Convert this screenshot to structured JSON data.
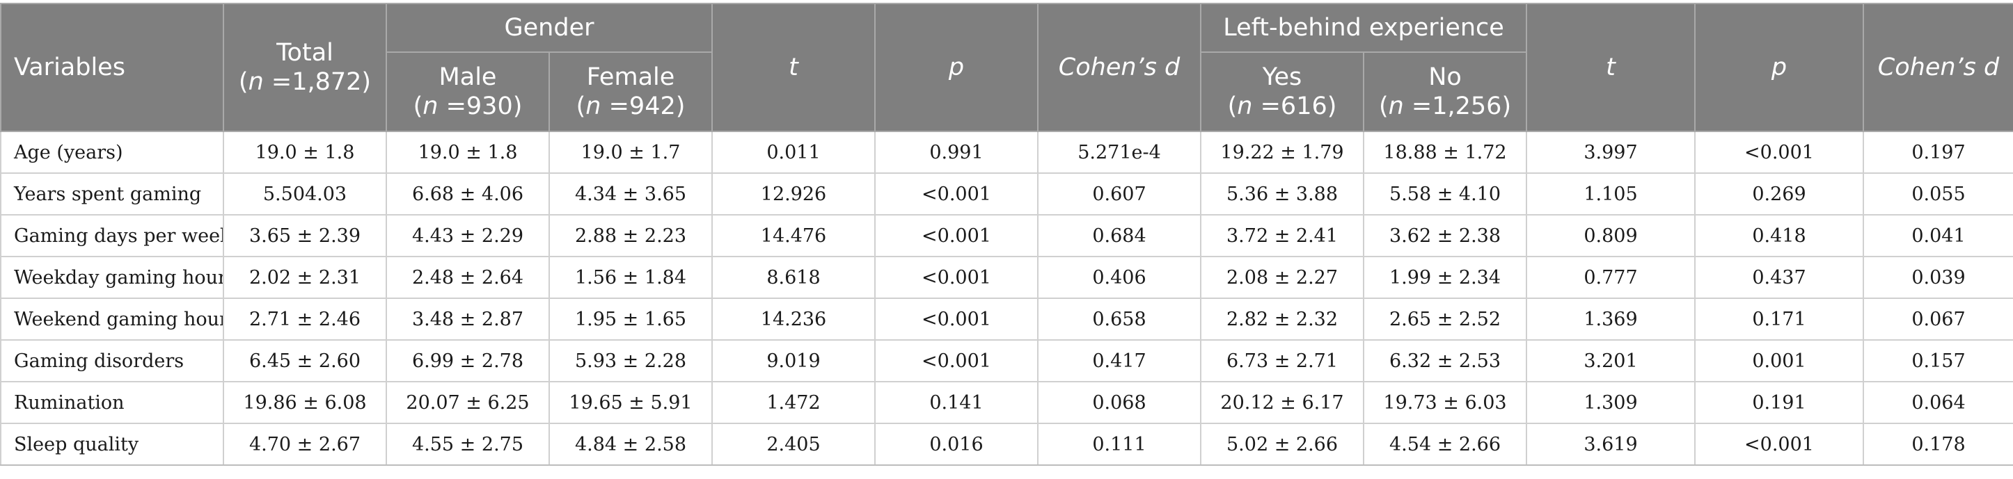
{
  "header": {
    "variables": "Variables",
    "total": {
      "label": "Total",
      "n_prefix": "n",
      "n_value": " =1,872"
    },
    "gender": "Gender",
    "male": {
      "label": "Male",
      "n_prefix": "n",
      "n_value": " =930"
    },
    "female": {
      "label": "Female",
      "n_prefix": "n",
      "n_value": " =942"
    },
    "t": "t",
    "p": "p",
    "cohens_d": "Cohen’s d",
    "left_behind": "Left-behind experience",
    "yes": {
      "label": "Yes",
      "n_prefix": "n",
      "n_value": " =616"
    },
    "no": {
      "label": "No",
      "n_prefix": "n",
      "n_value": " =1,256"
    }
  },
  "rows": [
    [
      "Age (years)",
      "19.0 ± 1.8",
      "19.0 ± 1.8",
      "19.0 ± 1.7",
      "0.011",
      "0.991",
      "5.271e-4",
      "19.22 ± 1.79",
      "18.88 ± 1.72",
      "3.997",
      "<0.001",
      "0.197"
    ],
    [
      "Years spent gaming",
      "5.504.03",
      "6.68 ± 4.06",
      "4.34 ± 3.65",
      "12.926",
      "<0.001",
      "0.607",
      "5.36 ± 3.88",
      "5.58 ± 4.10",
      "1.105",
      "0.269",
      "0.055"
    ],
    [
      "Gaming days per week",
      "3.65 ± 2.39",
      "4.43 ± 2.29",
      "2.88 ± 2.23",
      "14.476",
      "<0.001",
      "0.684",
      "3.72 ± 2.41",
      "3.62 ± 2.38",
      "0.809",
      "0.418",
      "0.041"
    ],
    [
      "Weekday gaming hours",
      "2.02 ± 2.31",
      "2.48 ± 2.64",
      "1.56 ± 1.84",
      "8.618",
      "<0.001",
      "0.406",
      "2.08 ± 2.27",
      "1.99 ± 2.34",
      "0.777",
      "0.437",
      "0.039"
    ],
    [
      "Weekend gaming hours",
      "2.71 ± 2.46",
      "3.48 ± 2.87",
      "1.95 ± 1.65",
      "14.236",
      "<0.001",
      "0.658",
      "2.82 ± 2.32",
      "2.65 ± 2.52",
      "1.369",
      "0.171",
      "0.067"
    ],
    [
      "Gaming disorders",
      "6.45 ± 2.60",
      "6.99 ± 2.78",
      "5.93 ± 2.28",
      "9.019",
      "<0.001",
      "0.417",
      "6.73 ± 2.71",
      "6.32 ± 2.53",
      "3.201",
      "0.001",
      "0.157"
    ],
    [
      "Rumination",
      "19.86 ± 6.08",
      "20.07 ± 6.25",
      "19.65 ± 5.91",
      "1.472",
      "0.141",
      "0.068",
      "20.12 ± 6.17",
      "19.73 ± 6.03",
      "1.309",
      "0.191",
      "0.064"
    ],
    [
      "Sleep quality",
      "4.70 ± 2.67",
      "4.55 ± 2.75",
      "4.84 ± 2.58",
      "2.405",
      "0.016",
      "0.111",
      "5.02 ± 2.66",
      "4.54 ± 2.66",
      "3.619",
      "<0.001",
      "0.178"
    ]
  ]
}
